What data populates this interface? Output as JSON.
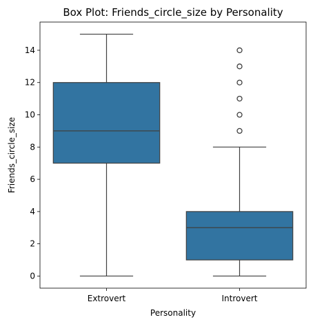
{
  "chart_data": {
    "type": "box",
    "title": "Box Plot: Friends_circle_size by Personality",
    "xlabel": "Personality",
    "ylabel": "Friends_circle_size",
    "categories": [
      "Extrovert",
      "Introvert"
    ],
    "y_ticks": [
      0,
      2,
      4,
      6,
      8,
      10,
      12,
      14
    ],
    "ylim": [
      -0.75,
      15.75
    ],
    "grid": false,
    "legend": "none",
    "box_color": "#3274a1",
    "line_color": "#3f3f3f",
    "series": [
      {
        "category": "Extrovert",
        "min": 0,
        "q1": 7,
        "median": 9,
        "q3": 12,
        "max": 15,
        "outliers": []
      },
      {
        "category": "Introvert",
        "min": 0,
        "q1": 1,
        "median": 3,
        "q3": 4,
        "max": 8,
        "outliers": [
          9,
          10,
          11,
          12,
          13,
          14
        ]
      }
    ]
  }
}
